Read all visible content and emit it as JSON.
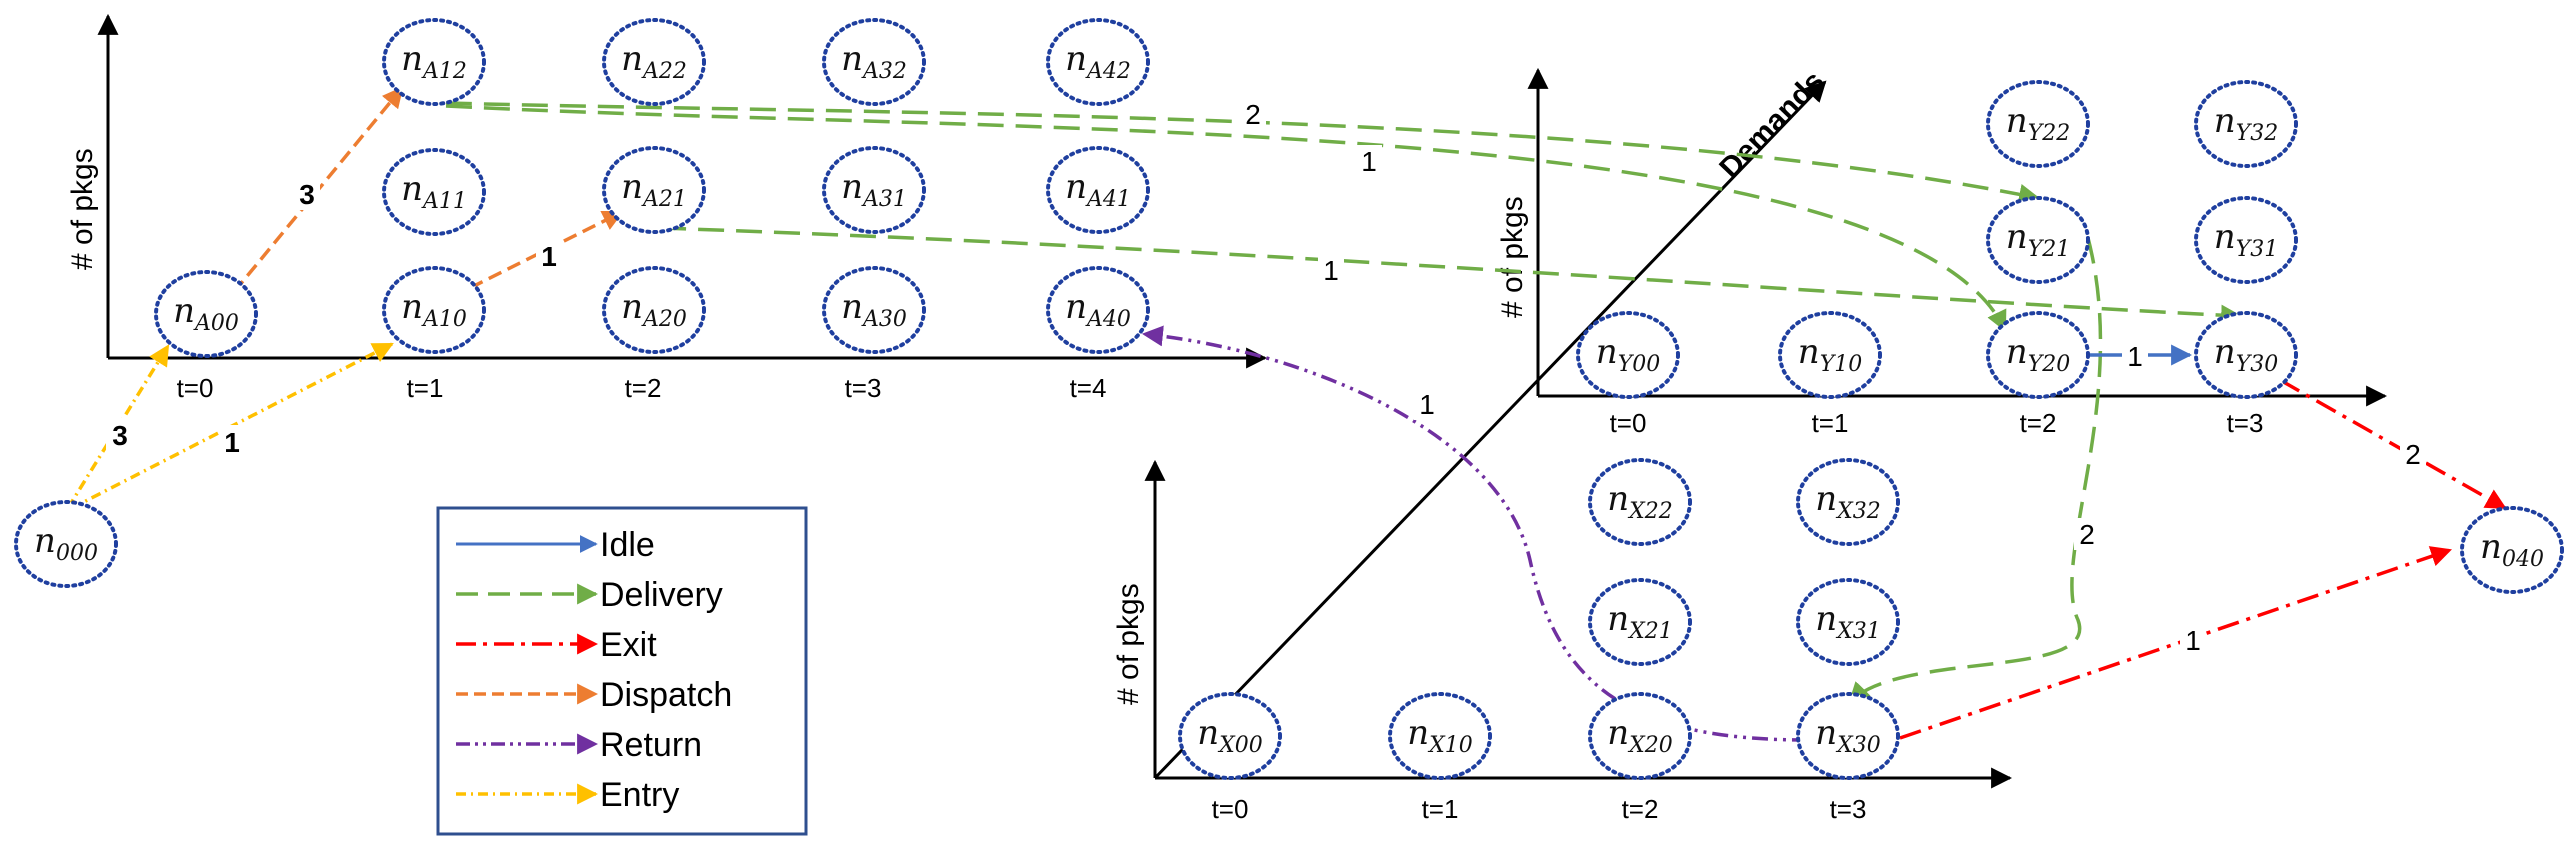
{
  "nodes": {
    "n000": {
      "main": "n",
      "sub": "000"
    },
    "nA00": {
      "main": "n",
      "sub": "A00"
    },
    "nA10": {
      "main": "n",
      "sub": "A10"
    },
    "nA20": {
      "main": "n",
      "sub": "A20"
    },
    "nA30": {
      "main": "n",
      "sub": "A30"
    },
    "nA40": {
      "main": "n",
      "sub": "A40"
    },
    "nA11": {
      "main": "n",
      "sub": "A11"
    },
    "nA21": {
      "main": "n",
      "sub": "A21"
    },
    "nA31": {
      "main": "n",
      "sub": "A31"
    },
    "nA41": {
      "main": "n",
      "sub": "A41"
    },
    "nA12": {
      "main": "n",
      "sub": "A12"
    },
    "nA22": {
      "main": "n",
      "sub": "A22"
    },
    "nA32": {
      "main": "n",
      "sub": "A32"
    },
    "nA42": {
      "main": "n",
      "sub": "A42"
    },
    "nY00": {
      "main": "n",
      "sub": "Y00"
    },
    "nY10": {
      "main": "n",
      "sub": "Y10"
    },
    "nY20": {
      "main": "n",
      "sub": "Y20"
    },
    "nY30": {
      "main": "n",
      "sub": "Y30"
    },
    "nY21": {
      "main": "n",
      "sub": "Y21"
    },
    "nY31": {
      "main": "n",
      "sub": "Y31"
    },
    "nY22": {
      "main": "n",
      "sub": "Y22"
    },
    "nY32": {
      "main": "n",
      "sub": "Y32"
    },
    "nX00": {
      "main": "n",
      "sub": "X00"
    },
    "nX10": {
      "main": "n",
      "sub": "X10"
    },
    "nX20": {
      "main": "n",
      "sub": "X20"
    },
    "nX30": {
      "main": "n",
      "sub": "X30"
    },
    "nX21": {
      "main": "n",
      "sub": "X21"
    },
    "nX31": {
      "main": "n",
      "sub": "X31"
    },
    "nX22": {
      "main": "n",
      "sub": "X22"
    },
    "nX32": {
      "main": "n",
      "sub": "X32"
    },
    "n040": {
      "main": "n",
      "sub": "040"
    }
  },
  "axes": {
    "a_ylabel": "# of pkgs",
    "y_ylabel": "# of pkgs",
    "x_ylabel": "# of pkgs",
    "demands_label": "Demands",
    "a_ticks": [
      "t=0",
      "t=1",
      "t=2",
      "t=3",
      "t=4"
    ],
    "y_ticks": [
      "t=0",
      "t=1",
      "t=2",
      "t=3"
    ],
    "x_ticks": [
      "t=0",
      "t=1",
      "t=2",
      "t=3"
    ]
  },
  "edge_labels": {
    "entry_3": "3",
    "entry_1": "1",
    "dispatch_3": "3",
    "dispatch_1": "1",
    "delivery_a12_y21": "2",
    "delivery_a12_y20": "1",
    "delivery_a21_y30": "1",
    "return_x30_a40": "1",
    "idle_y20_y30": "1",
    "exit_y30": "2",
    "delivery_y21_x30": "2",
    "exit_x30": "1"
  },
  "legend": {
    "items": [
      {
        "label": "Idle",
        "color": "#4472c4"
      },
      {
        "label": "Delivery",
        "color": "#70ad47"
      },
      {
        "label": "Exit",
        "color": "#ff0000"
      },
      {
        "label": "Dispatch",
        "color": "#ed7d31"
      },
      {
        "label": "Return",
        "color": "#7030a0"
      },
      {
        "label": "Entry",
        "color": "#ffc000"
      }
    ]
  },
  "colors": {
    "idle": "#4472c4",
    "delivery": "#70ad47",
    "exit": "#ff0000",
    "dispatch": "#ed7d31",
    "return": "#7030a0",
    "entry": "#ffc000",
    "node_border": "#1f3f9f"
  }
}
